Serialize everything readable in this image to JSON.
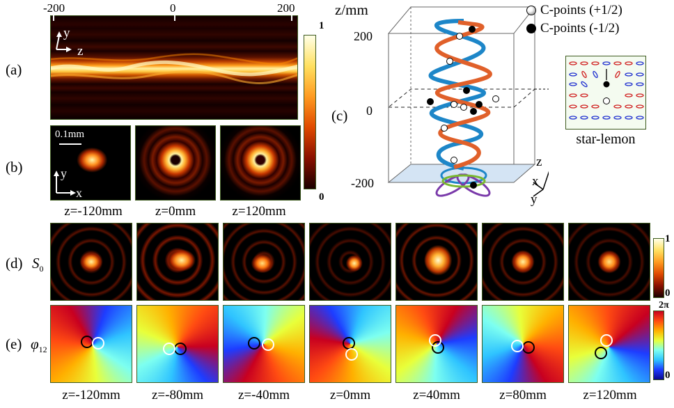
{
  "panel_labels": {
    "a": "(a)",
    "b": "(b)",
    "c": "(c)",
    "d": "(d)",
    "e": "(e)"
  },
  "panel_a": {
    "z_ticks": [
      "-200",
      "0",
      "200"
    ],
    "y_axis": "y",
    "z_axis": "z",
    "colorbar_max": "1",
    "colorbar_min": "0"
  },
  "panel_b": {
    "scale_bar": "0.1mm",
    "y_axis": "y",
    "x_axis": "x",
    "captions": [
      "z=-120mm",
      "z=0mm",
      "z=120mm"
    ]
  },
  "panel_c": {
    "z_axis_title": "z/mm",
    "z_ticks": [
      "200",
      "0",
      "-200"
    ],
    "legend": [
      "C-points (+1/2)",
      "C-points (-1/2)"
    ],
    "inset_caption": "star-lemon",
    "triad": {
      "z": "z",
      "x": "x",
      "y": "y"
    }
  },
  "panel_d": {
    "row_label": "S",
    "row_label_sub": "0",
    "colorbar_max": "1",
    "colorbar_min": "0"
  },
  "panel_e": {
    "row_label": "φ",
    "row_label_sub": "12",
    "colorbar_max": "2π",
    "colorbar_min": "0"
  },
  "bottom_captions": [
    "z=-120mm",
    "z=-80mm",
    "z=-40mm",
    "z=0mm",
    "z=40mm",
    "z=80mm",
    "z=120mm"
  ],
  "colors": {
    "beam_peak": "#fff1a0",
    "beam_mid": "#ff7a00",
    "dark": "#100000",
    "helix_blue": "#1d86c8",
    "helix_orange": "#e0602a",
    "frame_green": "#3d5a1e"
  }
}
